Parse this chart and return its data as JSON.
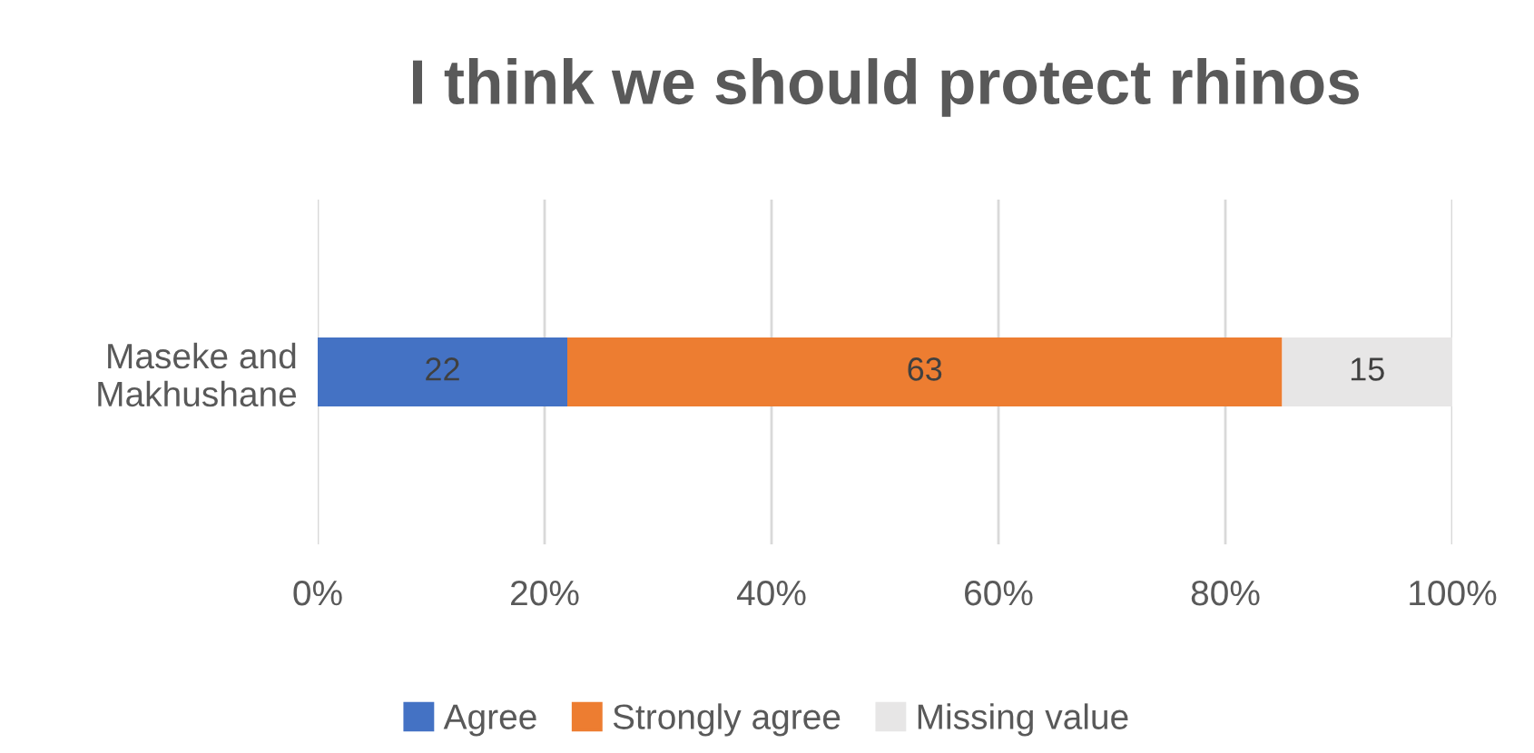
{
  "chart_data": {
    "type": "bar",
    "orientation": "horizontal",
    "stacked": true,
    "title": "I think we should protect rhinos",
    "categories": [
      "Maseke and\nMakhushane"
    ],
    "series": [
      {
        "name": "Agree",
        "color": "#4472c4",
        "values": [
          22
        ]
      },
      {
        "name": "Strongly agree",
        "color": "#ed7d31",
        "values": [
          63
        ]
      },
      {
        "name": "Missing value",
        "color": "#e7e6e6",
        "values": [
          15
        ]
      }
    ],
    "xlim": [
      0,
      100
    ],
    "xticks": [
      {
        "value": 0,
        "label": "0%"
      },
      {
        "value": 20,
        "label": "20%"
      },
      {
        "value": 40,
        "label": "40%"
      },
      {
        "value": 60,
        "label": "60%"
      },
      {
        "value": 80,
        "label": "80%"
      },
      {
        "value": 100,
        "label": "100%"
      }
    ],
    "data_labels": true,
    "grid": "x",
    "legend": "bottom"
  }
}
